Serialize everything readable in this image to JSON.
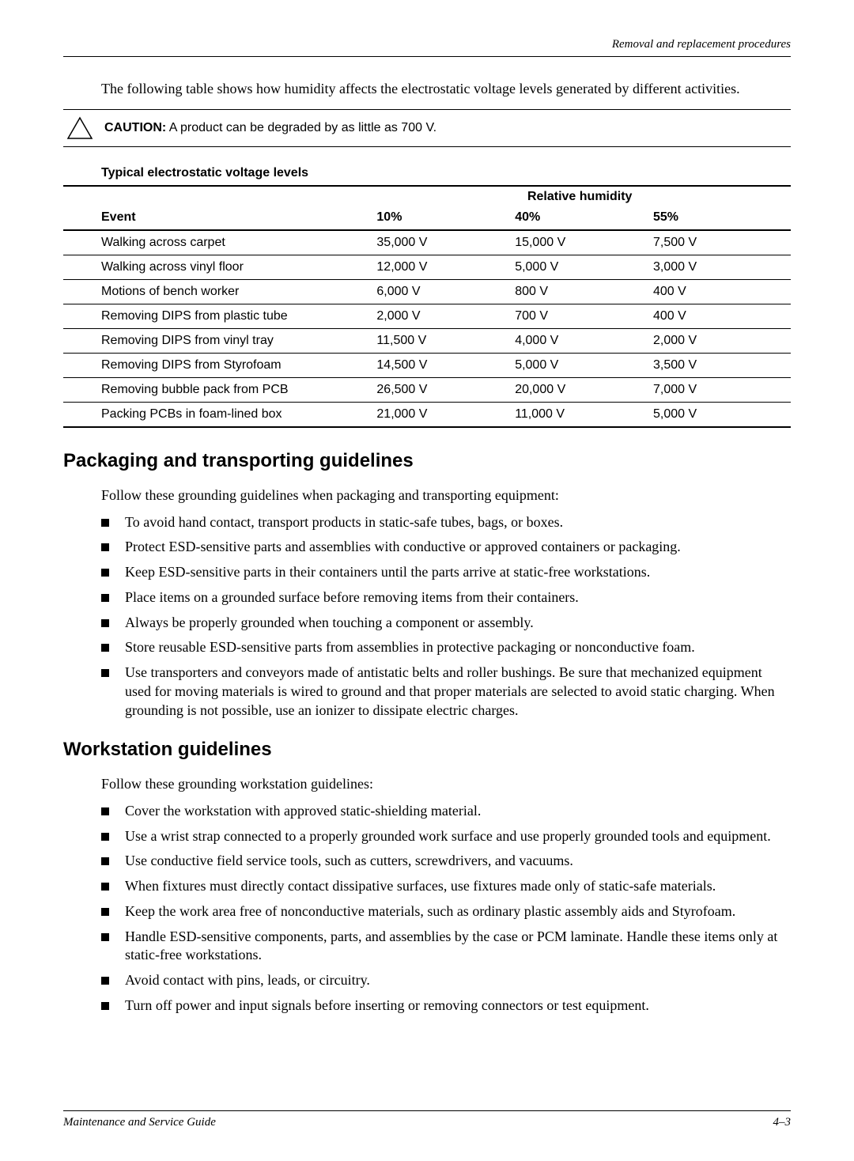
{
  "header": {
    "text": "Removal and replacement procedures"
  },
  "intro": "The following table shows how humidity affects the electrostatic voltage levels generated by different activities.",
  "caution": {
    "label": "CAUTION:",
    "text": "A product can be degraded by as little as 700 V."
  },
  "table": {
    "title": "Typical electrostatic voltage levels",
    "group_header": "Relative humidity",
    "columns": {
      "event": "Event",
      "c10": "10%",
      "c40": "40%",
      "c55": "55%"
    },
    "rows": [
      {
        "event": "Walking across carpet",
        "c10": "35,000 V",
        "c40": "15,000 V",
        "c55": "7,500 V"
      },
      {
        "event": "Walking across vinyl floor",
        "c10": "12,000 V",
        "c40": "5,000 V",
        "c55": "3,000 V"
      },
      {
        "event": "Motions of bench worker",
        "c10": "6,000 V",
        "c40": "800 V",
        "c55": "400 V"
      },
      {
        "event": "Removing DIPS from plastic tube",
        "c10": "2,000 V",
        "c40": "700 V",
        "c55": "400 V"
      },
      {
        "event": "Removing DIPS from vinyl tray",
        "c10": "11,500 V",
        "c40": "4,000 V",
        "c55": "2,000 V"
      },
      {
        "event": "Removing DIPS from Styrofoam",
        "c10": "14,500 V",
        "c40": "5,000 V",
        "c55": "3,500 V"
      },
      {
        "event": "Removing bubble pack from PCB",
        "c10": "26,500 V",
        "c40": "20,000 V",
        "c55": "7,000 V"
      },
      {
        "event": "Packing PCBs in foam-lined box",
        "c10": "21,000 V",
        "c40": "11,000 V",
        "c55": "5,000 V"
      }
    ]
  },
  "sections": {
    "packaging": {
      "heading": "Packaging and transporting guidelines",
      "intro": "Follow these grounding guidelines when packaging and transporting equipment:",
      "items": [
        "To avoid hand contact, transport products in static-safe tubes, bags, or boxes.",
        "Protect ESD-sensitive parts and assemblies with conductive or approved containers or packaging.",
        "Keep ESD-sensitive parts in their containers until the parts arrive at static-free workstations.",
        "Place items on a grounded surface before removing items from their containers.",
        "Always be properly grounded when touching a component or assembly.",
        "Store reusable ESD-sensitive parts from assemblies in protective packaging or nonconductive foam.",
        "Use transporters and conveyors made of antistatic belts and roller bushings. Be sure that mechanized equipment used for moving materials is wired to ground and that proper materials are selected to avoid static charging. When grounding is not possible, use an ionizer to dissipate electric charges."
      ]
    },
    "workstation": {
      "heading": "Workstation guidelines",
      "intro": "Follow these grounding workstation guidelines:",
      "items": [
        "Cover the workstation with approved static-shielding material.",
        "Use a wrist strap connected to a properly grounded work surface and use properly grounded tools and equipment.",
        "Use conductive field service tools, such as cutters, screwdrivers, and vacuums.",
        "When fixtures must directly contact dissipative surfaces, use fixtures made only of static-safe materials.",
        "Keep the work area free of nonconductive materials, such as ordinary plastic assembly aids and Styrofoam.",
        "Handle ESD-sensitive components, parts, and assemblies by the case or PCM laminate. Handle these items only at static-free workstations.",
        "Avoid contact with pins, leads, or circuitry.",
        "Turn off power and input signals before inserting or removing connectors or test equipment."
      ]
    }
  },
  "footer": {
    "left": "Maintenance and Service Guide",
    "right": "4–3"
  }
}
